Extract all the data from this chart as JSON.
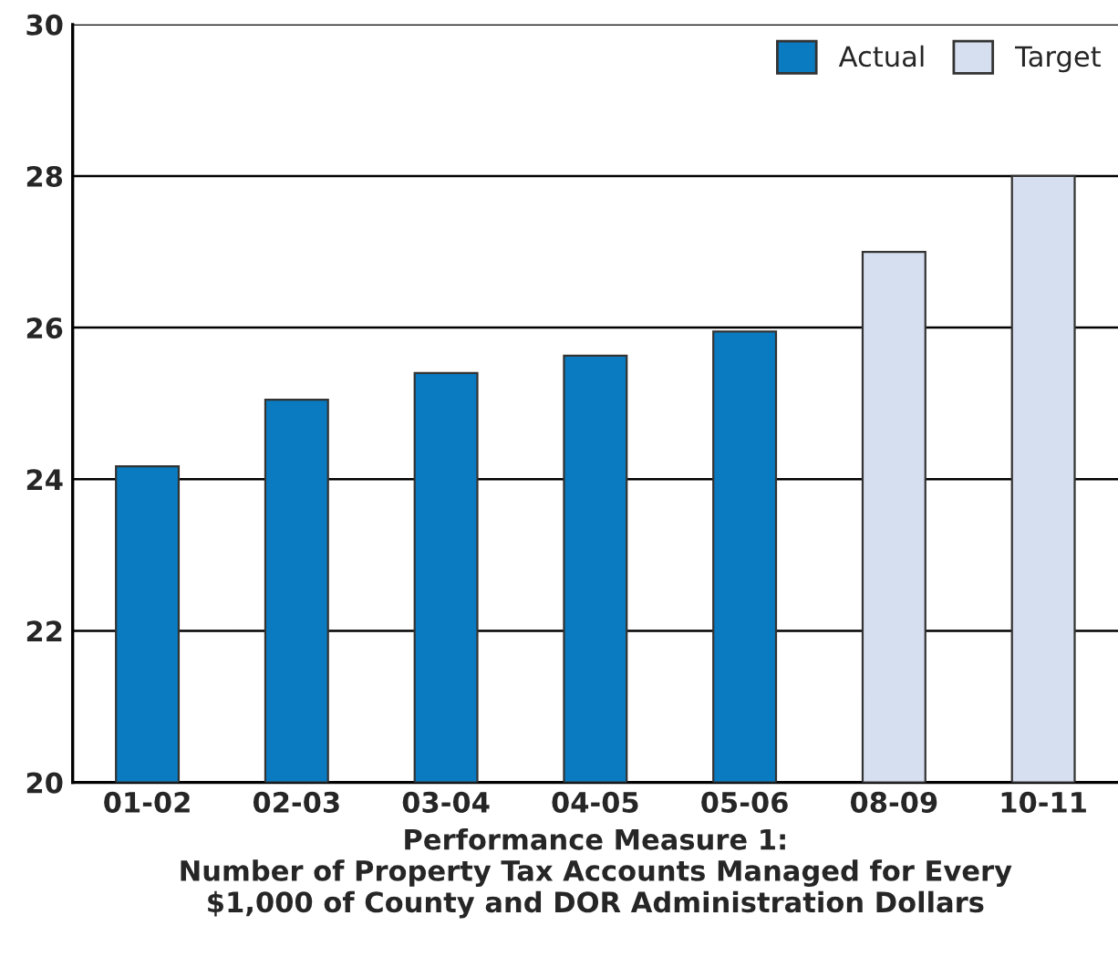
{
  "chart_data": {
    "type": "bar",
    "xlabel": "Performance Measure 1:\nNumber of Property Tax Accounts Managed for Every\n$1,000 of County and DOR Administration Dollars",
    "categories": [
      "01-02",
      "02-03",
      "03-04",
      "04-05",
      "05-06",
      "08-09",
      "10-11"
    ],
    "series": [
      {
        "name": "Actual",
        "color": "#0a7bc1",
        "values": [
          24.17,
          25.05,
          25.4,
          25.63,
          25.95,
          null,
          null
        ]
      },
      {
        "name": "Target",
        "color": "#d6dff0",
        "values": [
          null,
          null,
          null,
          null,
          null,
          27,
          28
        ]
      }
    ],
    "ylim": [
      20,
      30
    ],
    "yticks": [
      20,
      22,
      24,
      26,
      28,
      30
    ],
    "grid": "y",
    "legend": "top right"
  }
}
